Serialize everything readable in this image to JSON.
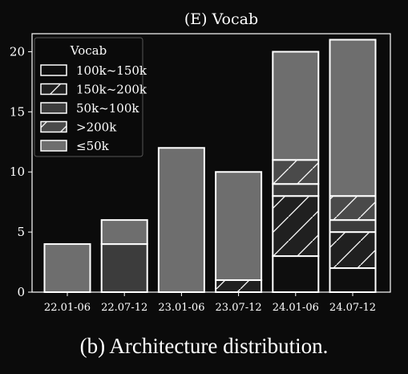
{
  "chart_data": {
    "type": "bar",
    "stacked": true,
    "title": "(E) Vocab",
    "xlabel": "",
    "ylabel": "",
    "categories": [
      "22.01-06",
      "22.07-12",
      "23.01-06",
      "23.07-12",
      "24.01-06",
      "24.07-12"
    ],
    "ylim": [
      0,
      21.5
    ],
    "yticks": [
      0,
      5,
      10,
      15,
      20
    ],
    "grid": false,
    "legend": {
      "title": "Vocab",
      "position": "top-left"
    },
    "series": [
      {
        "name": "100k~150k",
        "fill": "#0e0e0e",
        "hatch": false,
        "values": [
          0,
          0,
          0,
          0,
          3,
          2
        ]
      },
      {
        "name": "150k~200k",
        "fill": "#202020",
        "hatch": true,
        "values": [
          0,
          0,
          0,
          1,
          5,
          3
        ]
      },
      {
        "name": "50k~100k",
        "fill": "#3c3c3c",
        "hatch": false,
        "values": [
          0,
          4,
          0,
          0,
          1,
          1
        ]
      },
      {
        "name": ">200k",
        "fill": "#4a4a4a",
        "hatch": true,
        "values": [
          0,
          0,
          0,
          0,
          2,
          2
        ]
      },
      {
        "name": "≤50k",
        "fill": "#6e6e6e",
        "hatch": false,
        "values": [
          4,
          2,
          12,
          9,
          9,
          13
        ]
      }
    ],
    "colors": {
      "background": "#0b0b0b",
      "edge": "#ffffff",
      "text": "#ffffff"
    }
  },
  "caption": "(b) Architecture distribution."
}
